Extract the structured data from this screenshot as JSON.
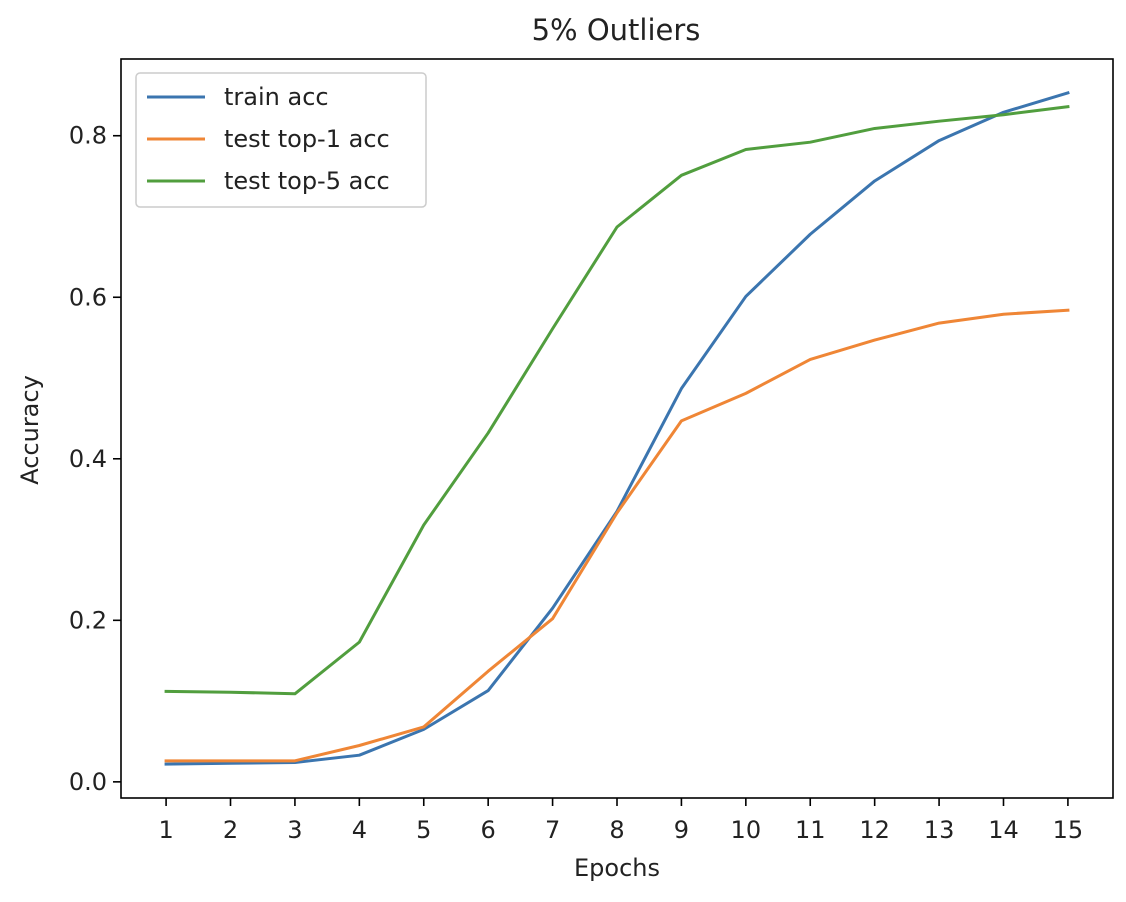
{
  "chart_data": {
    "type": "line",
    "title": "5% Outliers",
    "xlabel": "Epochs",
    "ylabel": "Accuracy",
    "x": [
      1,
      2,
      3,
      4,
      5,
      6,
      7,
      8,
      9,
      10,
      11,
      12,
      13,
      14,
      15
    ],
    "x_ticks": [
      "1",
      "2",
      "3",
      "4",
      "5",
      "6",
      "7",
      "8",
      "9",
      "10",
      "11",
      "12",
      "13",
      "14",
      "15"
    ],
    "y_ticks": [
      "0.0",
      "0.2",
      "0.4",
      "0.6",
      "0.8"
    ],
    "y_tick_values": [
      0.0,
      0.2,
      0.4,
      0.6,
      0.8
    ],
    "xlim": [
      0.3,
      15.7
    ],
    "ylim": [
      -0.02,
      0.895
    ],
    "grid": false,
    "legend_position": "upper left",
    "series": [
      {
        "name": "train acc",
        "color": "#3b75af",
        "values": [
          0.022,
          0.023,
          0.024,
          0.033,
          0.065,
          0.113,
          0.215,
          0.335,
          0.487,
          0.601,
          0.678,
          0.744,
          0.794,
          0.829,
          0.853
        ]
      },
      {
        "name": "test top-1 acc",
        "color": "#ef8636",
        "values": [
          0.026,
          0.026,
          0.026,
          0.045,
          0.068,
          0.137,
          0.202,
          0.333,
          0.447,
          0.481,
          0.523,
          0.547,
          0.568,
          0.579,
          0.584
        ]
      },
      {
        "name": "test top-5 acc",
        "color": "#519e3e",
        "values": [
          0.112,
          0.111,
          0.109,
          0.173,
          0.318,
          0.432,
          0.561,
          0.687,
          0.751,
          0.783,
          0.792,
          0.809,
          0.818,
          0.826,
          0.836
        ]
      }
    ]
  }
}
